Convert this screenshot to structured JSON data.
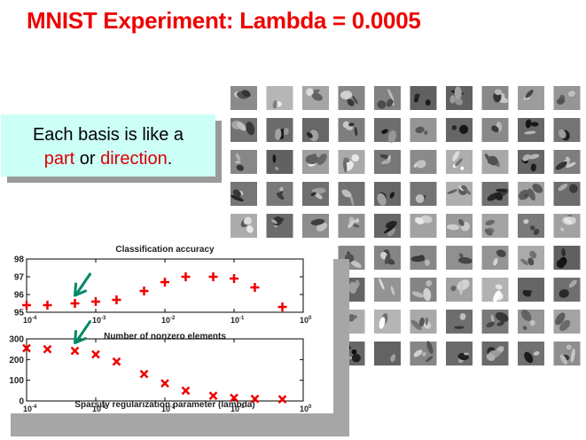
{
  "slide": {
    "title": "MNIST Experiment: Lambda = 0.0005"
  },
  "callout": {
    "line1": "Each basis is like a",
    "part": "part",
    "or": "or",
    "direction": "direction",
    "period": ".",
    "accent_color": "#dd0000"
  },
  "colors": {
    "title": "#ee0000",
    "marker": "#ee0000",
    "arrow": "#008866",
    "callout_bg": "#ccfff5"
  },
  "basis_grid": {
    "rows": 9,
    "cols": 10,
    "description_icon": "grayscale-basis-patch"
  },
  "chart_data": [
    {
      "type": "scatter",
      "title": "Classification accuracy",
      "xlabel": "Number of nonzero elements",
      "ylabel": "",
      "xscale": "log",
      "xlim": [
        0.0001,
        1
      ],
      "ylim": [
        95,
        98
      ],
      "yticks": [
        95,
        96,
        97,
        98
      ],
      "xticks": [
        {
          "base": "10",
          "exp": "-4",
          "value": 0.0001
        },
        {
          "base": "10",
          "exp": "-3",
          "value": 0.001
        },
        {
          "base": "10",
          "exp": "-2",
          "value": 0.01
        },
        {
          "base": "10",
          "exp": "-1",
          "value": 0.1
        },
        {
          "base": "10",
          "exp": "0",
          "value": 1
        }
      ],
      "marker": "+",
      "x": [
        0.0001,
        0.0002,
        0.0005,
        0.001,
        0.002,
        0.005,
        0.01,
        0.02,
        0.05,
        0.1,
        0.2,
        0.5
      ],
      "y": [
        95.4,
        95.4,
        95.5,
        95.6,
        95.7,
        96.2,
        96.7,
        97.0,
        97.0,
        96.9,
        96.4,
        95.3
      ],
      "highlight_x": 0.0005
    },
    {
      "type": "scatter",
      "title": "",
      "xlabel": "Sparsity regularization parameter (lambda)",
      "ylabel": "",
      "xscale": "log",
      "xlim": [
        0.0001,
        1
      ],
      "ylim": [
        0,
        300
      ],
      "yticks": [
        0,
        100,
        200,
        300
      ],
      "xticks": [
        {
          "base": "10",
          "exp": "-4",
          "value": 0.0001
        },
        {
          "base": "10",
          "exp": "-3",
          "value": 0.001
        },
        {
          "base": "10",
          "exp": "-2",
          "value": 0.01
        },
        {
          "base": "10",
          "exp": "-1",
          "value": 0.1
        },
        {
          "base": "10",
          "exp": "0",
          "value": 1
        }
      ],
      "marker": "x",
      "x": [
        0.0001,
        0.0002,
        0.0005,
        0.001,
        0.002,
        0.005,
        0.01,
        0.02,
        0.05,
        0.1,
        0.2,
        0.5
      ],
      "y": [
        255,
        250,
        242,
        225,
        190,
        130,
        85,
        50,
        25,
        15,
        10,
        8
      ],
      "highlight_x": 0.0005
    }
  ]
}
